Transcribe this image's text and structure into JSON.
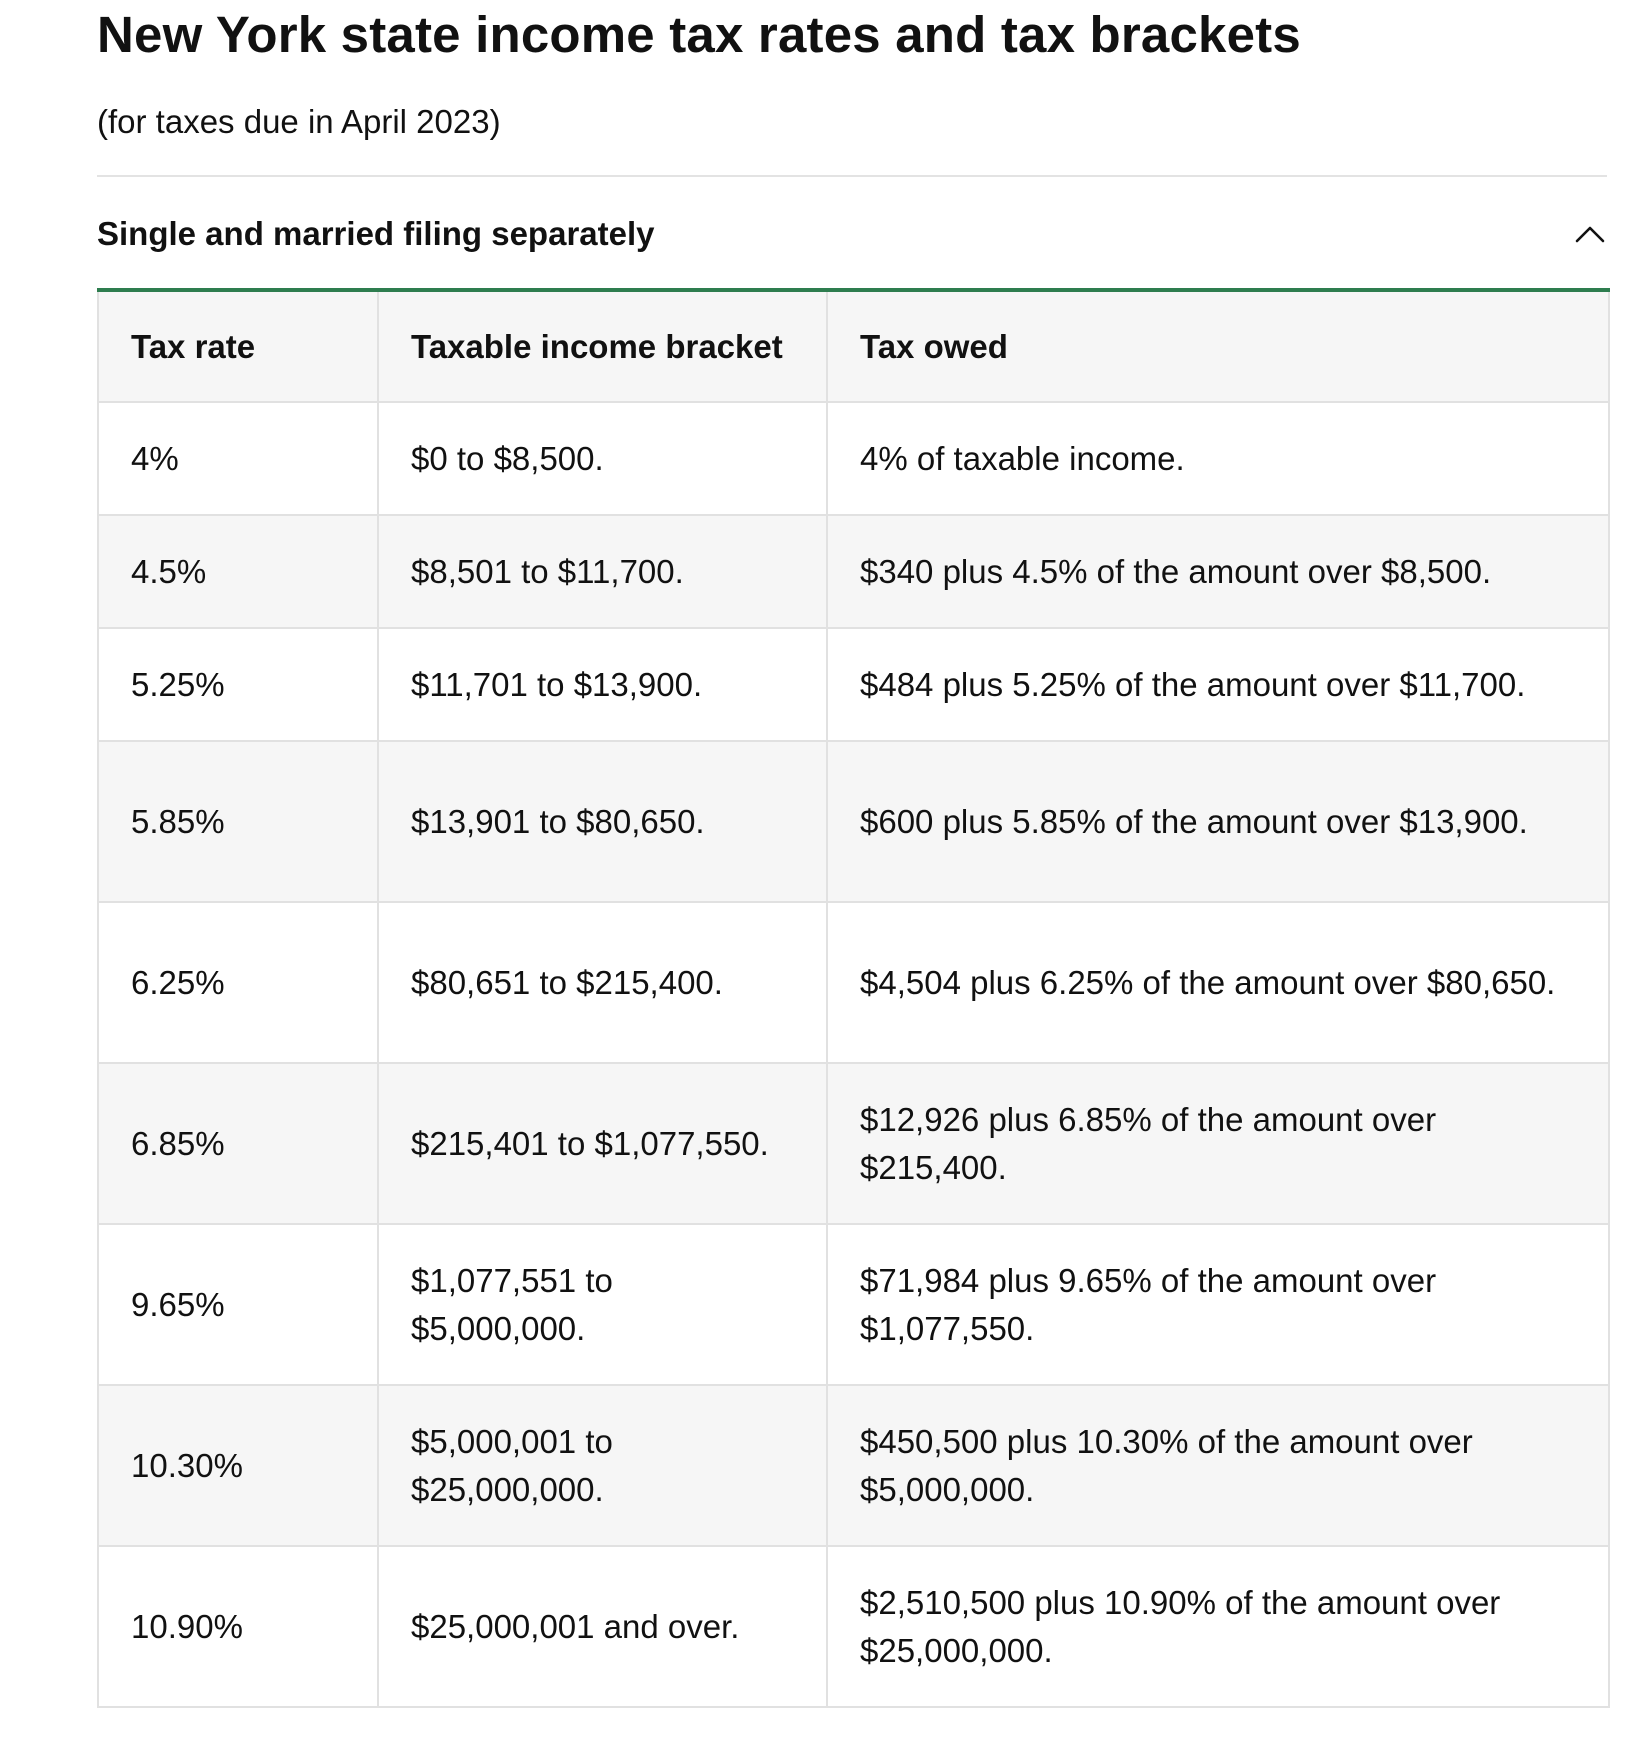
{
  "page": {
    "title": "New York state income tax rates and tax brackets",
    "subtitle": "(for taxes due in April 2023)"
  },
  "accordion": {
    "title": "Single and married filing separately",
    "expanded": true,
    "toggle_icon": "chevron-up-icon",
    "accent_color": "#2e7d4f"
  },
  "table": {
    "headers": [
      "Tax rate",
      "Taxable income bracket",
      "Tax owed"
    ],
    "rows": [
      [
        "4%",
        "$0 to $8,500.",
        "4% of taxable income."
      ],
      [
        "4.5%",
        "$8,501 to $11,700.",
        "$340 plus 4.5% of the amount over $8,500."
      ],
      [
        "5.25%",
        "$11,701 to $13,900.",
        "$484 plus 5.25% of the amount over $11,700."
      ],
      [
        "5.85%",
        "$13,901 to $80,650.",
        "$600 plus 5.85% of the amount over $13,900."
      ],
      [
        "6.25%",
        "$80,651 to $215,400.",
        "$4,504 plus 6.25% of the amount over $80,650."
      ],
      [
        "6.85%",
        "$215,401 to $1,077,550.",
        "$12,926 plus 6.85% of the amount over $215,400."
      ],
      [
        "9.65%",
        "$1,077,551 to $5,000,000.",
        "$71,984 plus 9.65% of the amount over $1,077,550."
      ],
      [
        "10.30%",
        "$5,000,001 to $25,000,000.",
        "$450,500 plus 10.30% of the amount over $5,000,000."
      ],
      [
        "10.90%",
        "$25,000,001 and over.",
        "$2,510,500 plus 10.90% of the amount over $25,000,000."
      ]
    ]
  }
}
